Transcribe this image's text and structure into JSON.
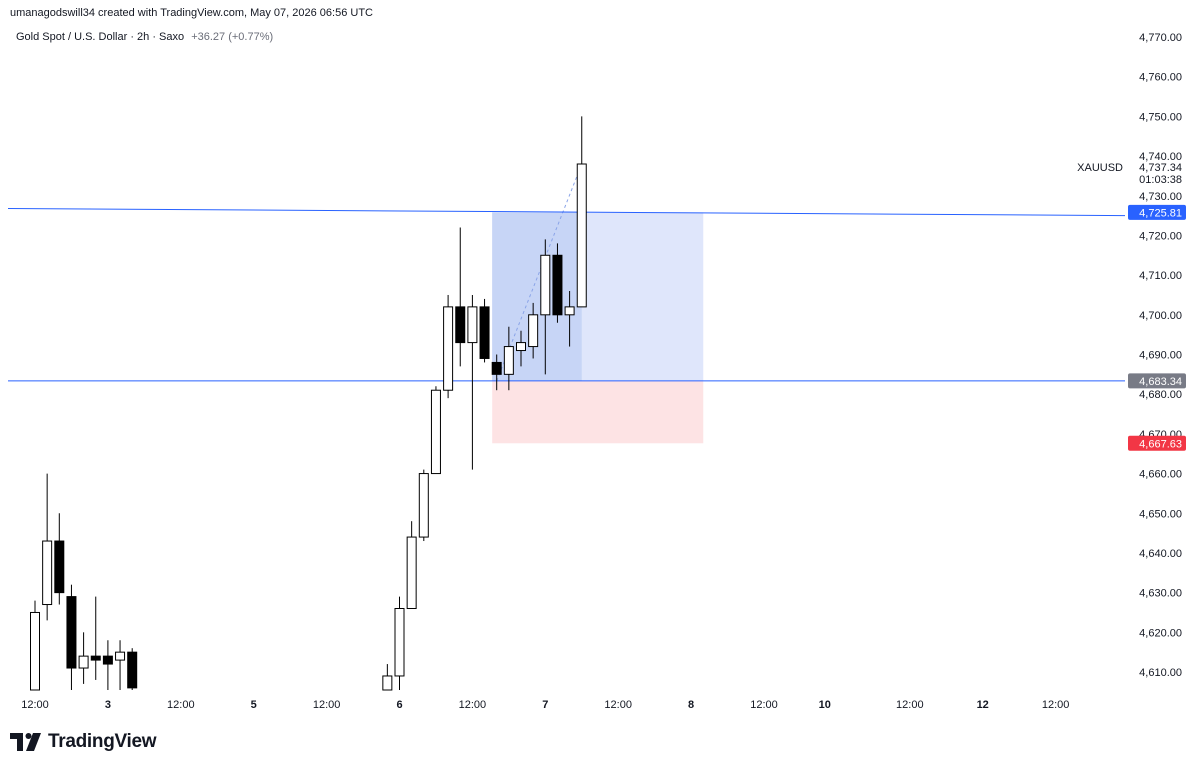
{
  "header": {
    "attribution": "umanagodswill34 created with TradingView.com, May 07, 2026 06:56 UTC"
  },
  "legend": {
    "symbol": "Gold Spot / U.S. Dollar · 2h · Saxo",
    "change": "+36.27 (+0.77%)"
  },
  "brand": {
    "name": "TradingView"
  },
  "colors": {
    "line_blue": "#2962ff",
    "profit_fill": "#dfe6fb",
    "profit_fill_dark": "#c7d5f6",
    "stop_fill": "#fde3e4",
    "stop_label": "#f23645",
    "entry_label": "#787b86",
    "candle_up": "#ffffff",
    "candle_down": "#000000"
  },
  "chart_data": {
    "type": "candlestick",
    "symbol_label": "XAUUSD",
    "last_price_label": "4,737.34",
    "countdown_label": "01:03:38",
    "ylim": [
      4603,
      4775
    ],
    "y_ticks": [
      "4,610.00",
      "4,620.00",
      "4,630.00",
      "4,640.00",
      "4,650.00",
      "4,660.00",
      "4,670.00",
      "4,680.00",
      "4,690.00",
      "4,700.00",
      "4,710.00",
      "4,720.00",
      "4,730.00",
      "4,740.00",
      "4,750.00",
      "4,760.00",
      "4,770.00"
    ],
    "x_ticks": [
      {
        "label": "12:00",
        "i": 0
      },
      {
        "label": "3",
        "i": 6
      },
      {
        "label": "12:00",
        "i": 12
      },
      {
        "label": "5",
        "i": 18
      },
      {
        "label": "12:00",
        "i": 24
      },
      {
        "label": "6",
        "i": 30
      },
      {
        "label": "12:00",
        "i": 36
      },
      {
        "label": "7",
        "i": 42
      },
      {
        "label": "12:00",
        "i": 48
      },
      {
        "label": "8",
        "i": 54
      },
      {
        "label": "12:00",
        "i": 60
      },
      {
        "label": "10",
        "i": 65
      },
      {
        "label": "12:00",
        "i": 72
      },
      {
        "label": "12",
        "i": 78
      },
      {
        "label": "12:00",
        "i": 84
      }
    ],
    "candles": [
      {
        "i": 0,
        "o": 4603,
        "h": 4628,
        "l": 4603,
        "c": 4625
      },
      {
        "i": 1,
        "o": 4627,
        "h": 4660,
        "l": 4623,
        "c": 4643
      },
      {
        "i": 2,
        "o": 4643,
        "h": 4650,
        "l": 4627,
        "c": 4630
      },
      {
        "i": 3,
        "o": 4629,
        "h": 4632,
        "l": 4603,
        "c": 4611
      },
      {
        "i": 4,
        "o": 4611,
        "h": 4620,
        "l": 4607,
        "c": 4614
      },
      {
        "i": 5,
        "o": 4614,
        "h": 4629,
        "l": 4608,
        "c": 4613
      },
      {
        "i": 6,
        "o": 4614,
        "h": 4618,
        "l": 4605,
        "c": 4612
      },
      {
        "i": 7,
        "o": 4613,
        "h": 4618,
        "l": 4604,
        "c": 4615
      },
      {
        "i": 8,
        "o": 4615,
        "h": 4616,
        "l": 4603,
        "c": 4606
      },
      {
        "i": 29,
        "o": 4603,
        "h": 4612,
        "l": 4603,
        "c": 4609
      },
      {
        "i": 30,
        "o": 4609,
        "h": 4629,
        "l": 4603,
        "c": 4626
      },
      {
        "i": 31,
        "o": 4626,
        "h": 4648,
        "l": 4626,
        "c": 4644
      },
      {
        "i": 32,
        "o": 4644,
        "h": 4661,
        "l": 4643,
        "c": 4660
      },
      {
        "i": 33,
        "o": 4660,
        "h": 4682,
        "l": 4660,
        "c": 4681
      },
      {
        "i": 34,
        "o": 4681,
        "h": 4705,
        "l": 4679,
        "c": 4702
      },
      {
        "i": 35,
        "o": 4702,
        "h": 4722,
        "l": 4687,
        "c": 4693
      },
      {
        "i": 36,
        "o": 4693,
        "h": 4705,
        "l": 4661,
        "c": 4702
      },
      {
        "i": 37,
        "o": 4702,
        "h": 4704,
        "l": 4688,
        "c": 4689
      },
      {
        "i": 38,
        "o": 4688,
        "h": 4690,
        "l": 4681,
        "c": 4685
      },
      {
        "i": 39,
        "o": 4685,
        "h": 4697,
        "l": 4681,
        "c": 4692
      },
      {
        "i": 40,
        "o": 4691,
        "h": 4696,
        "l": 4687,
        "c": 4693
      },
      {
        "i": 41,
        "o": 4692,
        "h": 4703,
        "l": 4689,
        "c": 4700
      },
      {
        "i": 42,
        "o": 4700,
        "h": 4719,
        "l": 4685,
        "c": 4715
      },
      {
        "i": 43,
        "o": 4715,
        "h": 4718,
        "l": 4698,
        "c": 4700
      },
      {
        "i": 44,
        "o": 4700,
        "h": 4706,
        "l": 4692,
        "c": 4702
      },
      {
        "i": 45,
        "o": 4702,
        "h": 4750,
        "l": 4702,
        "c": 4738
      }
    ],
    "position": {
      "start_i": 38,
      "end_i": 55,
      "entry": 4683.34,
      "target": 4725.81,
      "stop": 4667.63,
      "entry_label": "4,683.34",
      "target_label": "4,725.81",
      "stop_label": "4,667.63"
    },
    "lines": [
      {
        "name": "upper trend line",
        "y_start": 4726.8,
        "y_end": 4725.0
      },
      {
        "name": "entry line",
        "y_start": 4683.34,
        "y_end": 4683.34
      }
    ]
  }
}
